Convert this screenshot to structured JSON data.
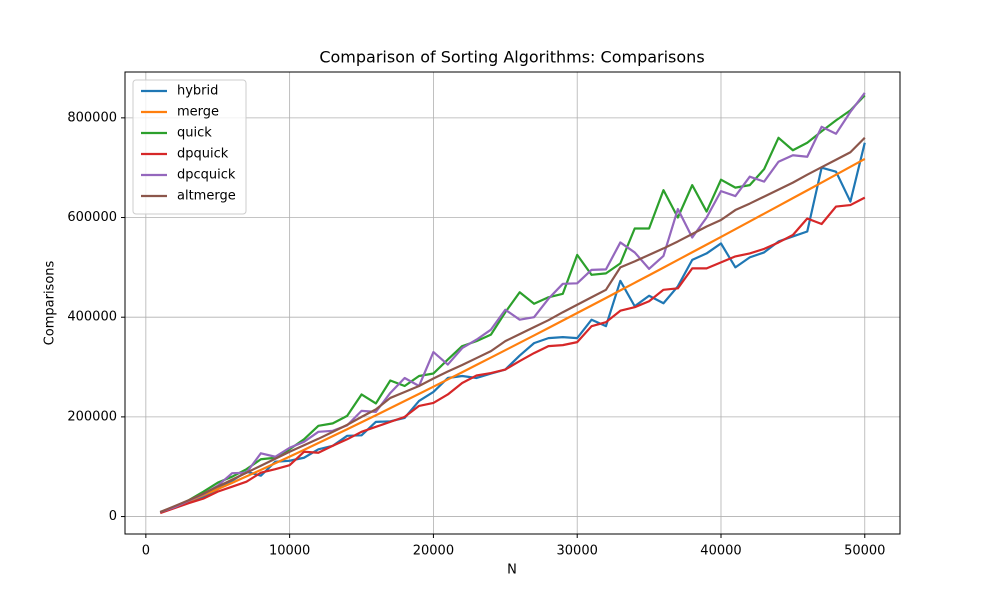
{
  "chart_data": {
    "type": "line",
    "title": "Comparison of Sorting Algorithms: Comparisons",
    "x_label": "N",
    "y_label": "Comparisons",
    "x": [
      1000,
      2000,
      3000,
      4000,
      5000,
      6000,
      7000,
      8000,
      9000,
      10000,
      11000,
      12000,
      13000,
      14000,
      15000,
      16000,
      17000,
      18000,
      19000,
      20000,
      21000,
      22000,
      23000,
      24000,
      25000,
      26000,
      27000,
      28000,
      29000,
      30000,
      31000,
      32000,
      33000,
      34000,
      35000,
      36000,
      37000,
      38000,
      39000,
      40000,
      41000,
      42000,
      43000,
      44000,
      45000,
      46000,
      47000,
      48000,
      49000,
      50000
    ],
    "series": [
      {
        "name": "hybrid",
        "color": "#1f77b4",
        "values": [
          8000,
          19000,
          30000,
          40000,
          55000,
          72000,
          90000,
          82000,
          110000,
          112000,
          118000,
          135000,
          142000,
          162000,
          163000,
          190000,
          191000,
          198000,
          232000,
          250000,
          278000,
          282000,
          278000,
          287000,
          295000,
          323000,
          348000,
          358000,
          360000,
          358000,
          395000,
          382000,
          473000,
          422000,
          443000,
          428000,
          462000,
          515000,
          528000,
          548000,
          500000,
          520000,
          530000,
          552000,
          562000,
          572000,
          700000,
          692000,
          632000,
          750000
        ]
      },
      {
        "name": "merge",
        "color": "#ff7f0e",
        "values": [
          8700,
          19400,
          30900,
          42800,
          55100,
          67700,
          80600,
          93600,
          106900,
          120300,
          133800,
          147500,
          161300,
          175200,
          189200,
          203300,
          217500,
          231800,
          246100,
          260600,
          275100,
          289600,
          304300,
          319000,
          333800,
          348600,
          363400,
          378400,
          393400,
          408400,
          423500,
          438600,
          453800,
          469000,
          484200,
          499500,
          514900,
          530300,
          545600,
          561100,
          576600,
          592100,
          607700,
          623300,
          638900,
          654500,
          670200,
          686000,
          701700,
          717500
        ]
      },
      {
        "name": "quick",
        "color": "#2ca02c",
        "values": [
          9000,
          20000,
          33000,
          50000,
          68000,
          80000,
          95000,
          115000,
          118000,
          135000,
          155000,
          182000,
          187000,
          202000,
          245000,
          227000,
          273000,
          262000,
          282000,
          287000,
          315000,
          342000,
          352000,
          365000,
          410000,
          450000,
          427000,
          440000,
          447000,
          525000,
          485000,
          488000,
          508000,
          578000,
          578000,
          655000,
          600000,
          665000,
          612000,
          676000,
          660000,
          665000,
          697000,
          760000,
          735000,
          750000,
          773000,
          795000,
          815000,
          845000
        ]
      },
      {
        "name": "dpquick",
        "color": "#d62728",
        "values": [
          7000,
          17000,
          27000,
          36000,
          50000,
          60000,
          70000,
          88000,
          95000,
          103000,
          130000,
          128000,
          142000,
          155000,
          170000,
          180000,
          190000,
          200000,
          222000,
          228000,
          245000,
          268000,
          283000,
          288000,
          295000,
          312000,
          328000,
          342000,
          344000,
          350000,
          382000,
          390000,
          413000,
          420000,
          432000,
          455000,
          458000,
          498000,
          498000,
          510000,
          522000,
          528000,
          537000,
          550000,
          565000,
          598000,
          587000,
          622000,
          625000,
          640000
        ]
      },
      {
        "name": "dpcquick",
        "color": "#9467bd",
        "values": [
          9000,
          19000,
          32000,
          45000,
          62000,
          87000,
          88000,
          127000,
          120000,
          138000,
          150000,
          170000,
          172000,
          183000,
          212000,
          210000,
          248000,
          278000,
          262000,
          330000,
          305000,
          338000,
          355000,
          375000,
          415000,
          395000,
          400000,
          437000,
          467000,
          468000,
          495000,
          496000,
          550000,
          530000,
          497000,
          523000,
          617000,
          560000,
          600000,
          653000,
          643000,
          682000,
          672000,
          712000,
          725000,
          722000,
          782000,
          768000,
          812000,
          850000
        ]
      },
      {
        "name": "altmerge",
        "color": "#8c564b",
        "values": [
          9000,
          21000,
          33000,
          46000,
          60000,
          74000,
          88000,
          102000,
          116000,
          130000,
          143000,
          156000,
          170000,
          184000,
          200000,
          215000,
          238000,
          250000,
          262000,
          277000,
          291000,
          304000,
          318000,
          332000,
          352000,
          366000,
          380000,
          394000,
          410000,
          425000,
          440000,
          455000,
          500000,
          512000,
          525000,
          538000,
          552000,
          567000,
          582000,
          595000,
          615000,
          628000,
          642000,
          656000,
          670000,
          686000,
          701000,
          716000,
          731000,
          760000
        ]
      }
    ],
    "xlim": [
      -1450,
      52450
    ],
    "ylim": [
      -35000,
      892000
    ],
    "xticks": [
      0,
      10000,
      20000,
      30000,
      40000,
      50000
    ],
    "yticks": [
      0,
      200000,
      400000,
      600000,
      800000
    ],
    "grid": true,
    "legend": "upper-left"
  }
}
